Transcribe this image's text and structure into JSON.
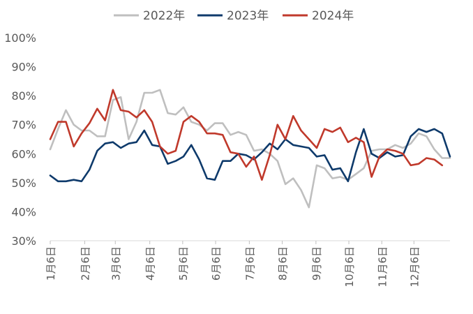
{
  "chart_data": {
    "type": "line",
    "title": "",
    "xlabel": "",
    "ylabel": "",
    "ylim": [
      30,
      100
    ],
    "y_ticks": [
      "30%",
      "40%",
      "50%",
      "60%",
      "70%",
      "80%",
      "90%",
      "100%"
    ],
    "y_tick_values": [
      30,
      40,
      50,
      60,
      70,
      80,
      90,
      100
    ],
    "x_tick_labels": [
      "1月6日",
      "2月6日",
      "3月6日",
      "4月6日",
      "5月6日",
      "6月6日",
      "7月6日",
      "8月6日",
      "9月6日",
      "10月6日",
      "11月6日",
      "12月6日"
    ],
    "x_tick_weeks": [
      0,
      4.4,
      8.3,
      12.7,
      16.9,
      21.1,
      25.4,
      29.6,
      33.9,
      38.1,
      42.3,
      46.4
    ],
    "legend_position": "top",
    "series": [
      {
        "name": "2022年",
        "color": "#bfbfbf",
        "values": [
          61.5,
          68.5,
          75.0,
          70.0,
          68.0,
          68.0,
          66.0,
          66.0,
          78.5,
          79.5,
          65.0,
          71.0,
          81.0,
          81.0,
          82.0,
          74.0,
          73.5,
          76.0,
          71.0,
          70.0,
          68.0,
          70.5,
          70.5,
          66.5,
          67.5,
          66.5,
          61.0,
          61.5,
          60.0,
          57.5,
          49.5,
          51.5,
          47.5,
          41.5,
          56.0,
          55.0,
          51.5,
          52.0,
          51.0,
          53.0,
          55.0,
          61.0,
          61.5,
          61.5,
          63.0,
          62.0,
          63.5,
          67.0,
          66.0,
          61.5,
          58.5,
          58.5
        ]
      },
      {
        "name": "2023年",
        "color": "#0e3a6b",
        "values": [
          52.5,
          50.5,
          50.5,
          51.0,
          50.5,
          54.5,
          61.0,
          63.5,
          64.0,
          62.0,
          63.5,
          64.0,
          68.0,
          63.0,
          62.5,
          56.5,
          57.5,
          59.0,
          63.0,
          58.0,
          51.5,
          51.0,
          57.5,
          57.5,
          60.0,
          59.5,
          58.0,
          60.5,
          63.5,
          61.5,
          65.0,
          63.0,
          62.5,
          62.0,
          59.0,
          59.5,
          54.5,
          55.0,
          50.5,
          60.5,
          68.5,
          60.0,
          58.5,
          60.5,
          59.0,
          59.5,
          66.0,
          68.5,
          67.5,
          68.5,
          67.0,
          59.0
        ]
      },
      {
        "name": "2024年",
        "color": "#c0392b",
        "values": [
          65.0,
          71.0,
          71.0,
          62.5,
          67.0,
          70.5,
          75.5,
          71.5,
          82.0,
          75.0,
          74.5,
          72.5,
          75.0,
          71.0,
          62.5,
          60.0,
          61.0,
          71.0,
          73.0,
          71.0,
          67.0,
          67.0,
          66.5,
          60.5,
          60.0,
          55.5,
          59.0,
          51.0,
          59.5,
          70.0,
          65.0,
          73.0,
          68.0,
          65.0,
          62.0,
          68.5,
          67.5,
          69.0,
          64.0,
          65.5,
          64.0,
          52.0,
          59.0,
          61.5,
          61.0,
          60.0,
          56.0,
          56.5,
          58.5,
          58.0,
          56.0
        ]
      }
    ]
  }
}
